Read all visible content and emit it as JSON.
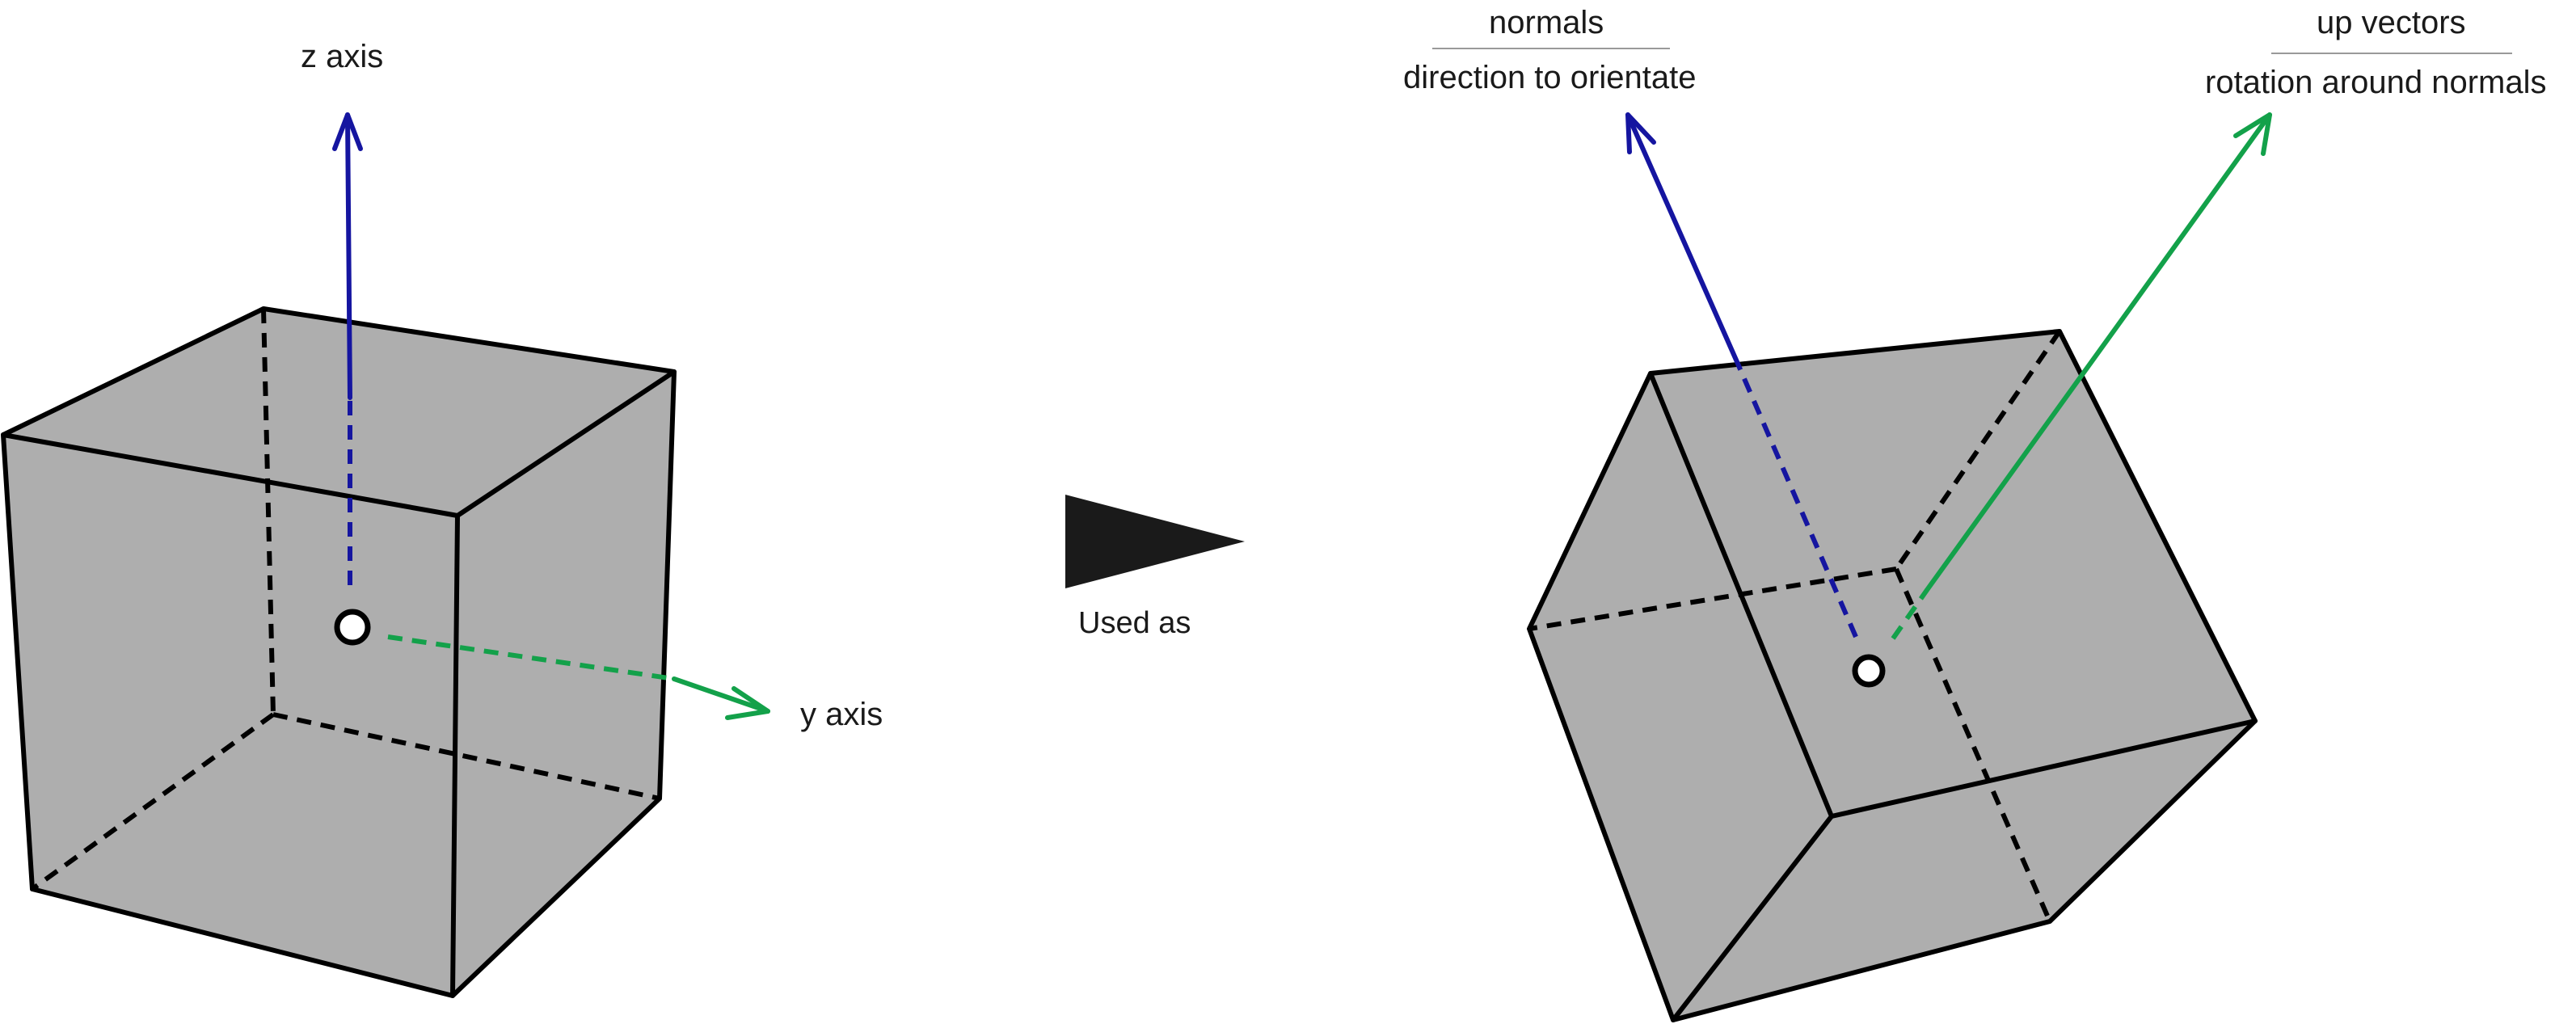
{
  "colors": {
    "background": "#ffffff",
    "cube_fill": "#aeaeae",
    "edge": "#000000",
    "z_axis": "#1515a0",
    "y_axis": "#13a14a",
    "normals_arrow": "#1515a0",
    "up_arrow": "#13a14a",
    "transition_arrow": "#1a1a1a"
  },
  "left_cube": {
    "z_label": "z axis",
    "y_label": "y axis"
  },
  "transition": {
    "label": "Used as",
    "icon": "triangle-right-icon"
  },
  "right_cube": {
    "normals_label": "normals",
    "normals_caption": "direction to orientate",
    "up_label": "up vectors",
    "up_caption": "rotation around normals"
  }
}
